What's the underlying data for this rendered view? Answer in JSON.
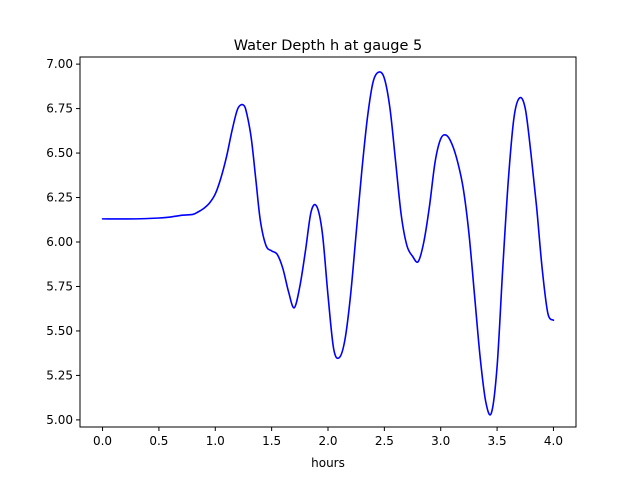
{
  "chart_data": {
    "type": "line",
    "title": "Water Depth h at gauge 5",
    "xlabel": "hours",
    "ylabel": "",
    "xlim": [
      -0.2,
      4.2
    ],
    "ylim": [
      4.96,
      7.04
    ],
    "xticks": [
      0.0,
      0.5,
      1.0,
      1.5,
      2.0,
      2.5,
      3.0,
      3.5,
      4.0
    ],
    "xtick_labels": [
      "0.0",
      "0.5",
      "1.0",
      "1.5",
      "2.0",
      "2.5",
      "3.0",
      "3.5",
      "4.0"
    ],
    "yticks": [
      5.0,
      5.25,
      5.5,
      5.75,
      6.0,
      6.25,
      6.5,
      6.75,
      7.0
    ],
    "ytick_labels": [
      "5.00",
      "5.25",
      "5.50",
      "5.75",
      "6.00",
      "6.25",
      "6.50",
      "6.75",
      "7.00"
    ],
    "grid": false,
    "series": [
      {
        "color": "#0000ff",
        "x": [
          0.0,
          0.3,
          0.5,
          0.6,
          0.7,
          0.8,
          0.85,
          0.9,
          0.95,
          1.0,
          1.05,
          1.1,
          1.15,
          1.2,
          1.25,
          1.28,
          1.32,
          1.36,
          1.4,
          1.45,
          1.5,
          1.55,
          1.6,
          1.65,
          1.7,
          1.75,
          1.8,
          1.85,
          1.9,
          1.95,
          2.0,
          2.05,
          2.1,
          2.15,
          2.2,
          2.25,
          2.3,
          2.35,
          2.4,
          2.45,
          2.5,
          2.55,
          2.6,
          2.65,
          2.7,
          2.75,
          2.8,
          2.85,
          2.9,
          2.95,
          3.0,
          3.05,
          3.1,
          3.15,
          3.2,
          3.25,
          3.3,
          3.35,
          3.4,
          3.45,
          3.5,
          3.55,
          3.6,
          3.65,
          3.7,
          3.75,
          3.8,
          3.85,
          3.9,
          3.95,
          4.0
        ],
        "y": [
          6.13,
          6.13,
          6.135,
          6.14,
          6.15,
          6.155,
          6.17,
          6.19,
          6.22,
          6.27,
          6.36,
          6.48,
          6.63,
          6.75,
          6.77,
          6.72,
          6.58,
          6.35,
          6.12,
          5.98,
          5.95,
          5.93,
          5.85,
          5.72,
          5.63,
          5.75,
          5.95,
          6.17,
          6.2,
          6.05,
          5.7,
          5.4,
          5.35,
          5.45,
          5.7,
          6.05,
          6.4,
          6.7,
          6.9,
          6.955,
          6.92,
          6.75,
          6.45,
          6.15,
          5.98,
          5.92,
          5.89,
          6.0,
          6.2,
          6.45,
          6.58,
          6.6,
          6.55,
          6.45,
          6.3,
          6.05,
          5.7,
          5.35,
          5.1,
          5.04,
          5.3,
          5.85,
          6.35,
          6.7,
          6.81,
          6.75,
          6.5,
          6.2,
          5.85,
          5.6,
          5.56
        ]
      }
    ]
  }
}
